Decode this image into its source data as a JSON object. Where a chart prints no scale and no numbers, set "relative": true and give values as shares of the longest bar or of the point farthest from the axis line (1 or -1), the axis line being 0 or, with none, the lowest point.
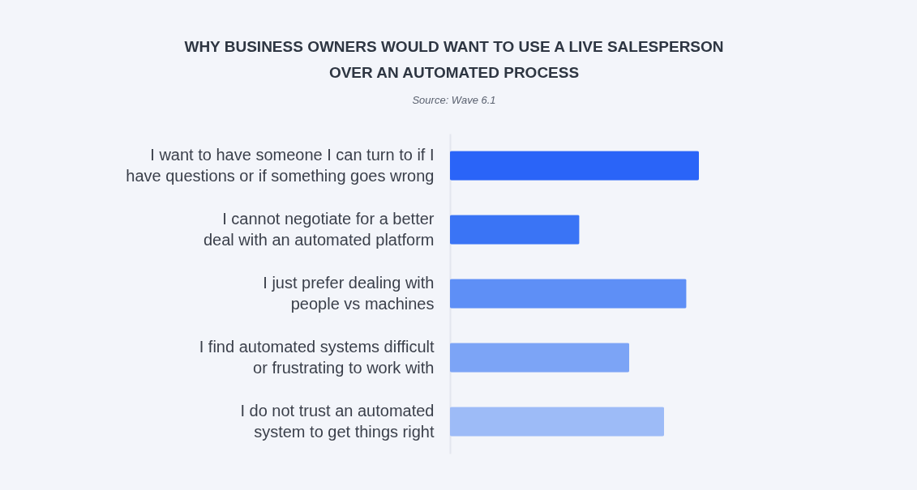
{
  "chart_data": {
    "type": "bar",
    "orientation": "horizontal",
    "relative": true,
    "title": "WHY BUSINESS OWNERS WOULD WANT TO USE A LIVE SALESPERSON OVER AN AUTOMATED PROCESS",
    "annotations": [
      "Source: Wave 6.1"
    ],
    "categories": [
      "I want to have someone I can turn to if I have questions or if something goes wrong",
      "I cannot negotiate for a better deal with an automated platform",
      "I just prefer dealing with people vs machines",
      "I find automated systems difficult or frustrating to work with",
      "I do not trust an automated system to get things right"
    ],
    "values": [
      1,
      0.52,
      0.95,
      0.72,
      0.86
    ],
    "colors": [
      "#2a64f8",
      "#3a74f5",
      "#5e8ff6",
      "#7ca4f6",
      "#9dbbf7"
    ]
  }
}
